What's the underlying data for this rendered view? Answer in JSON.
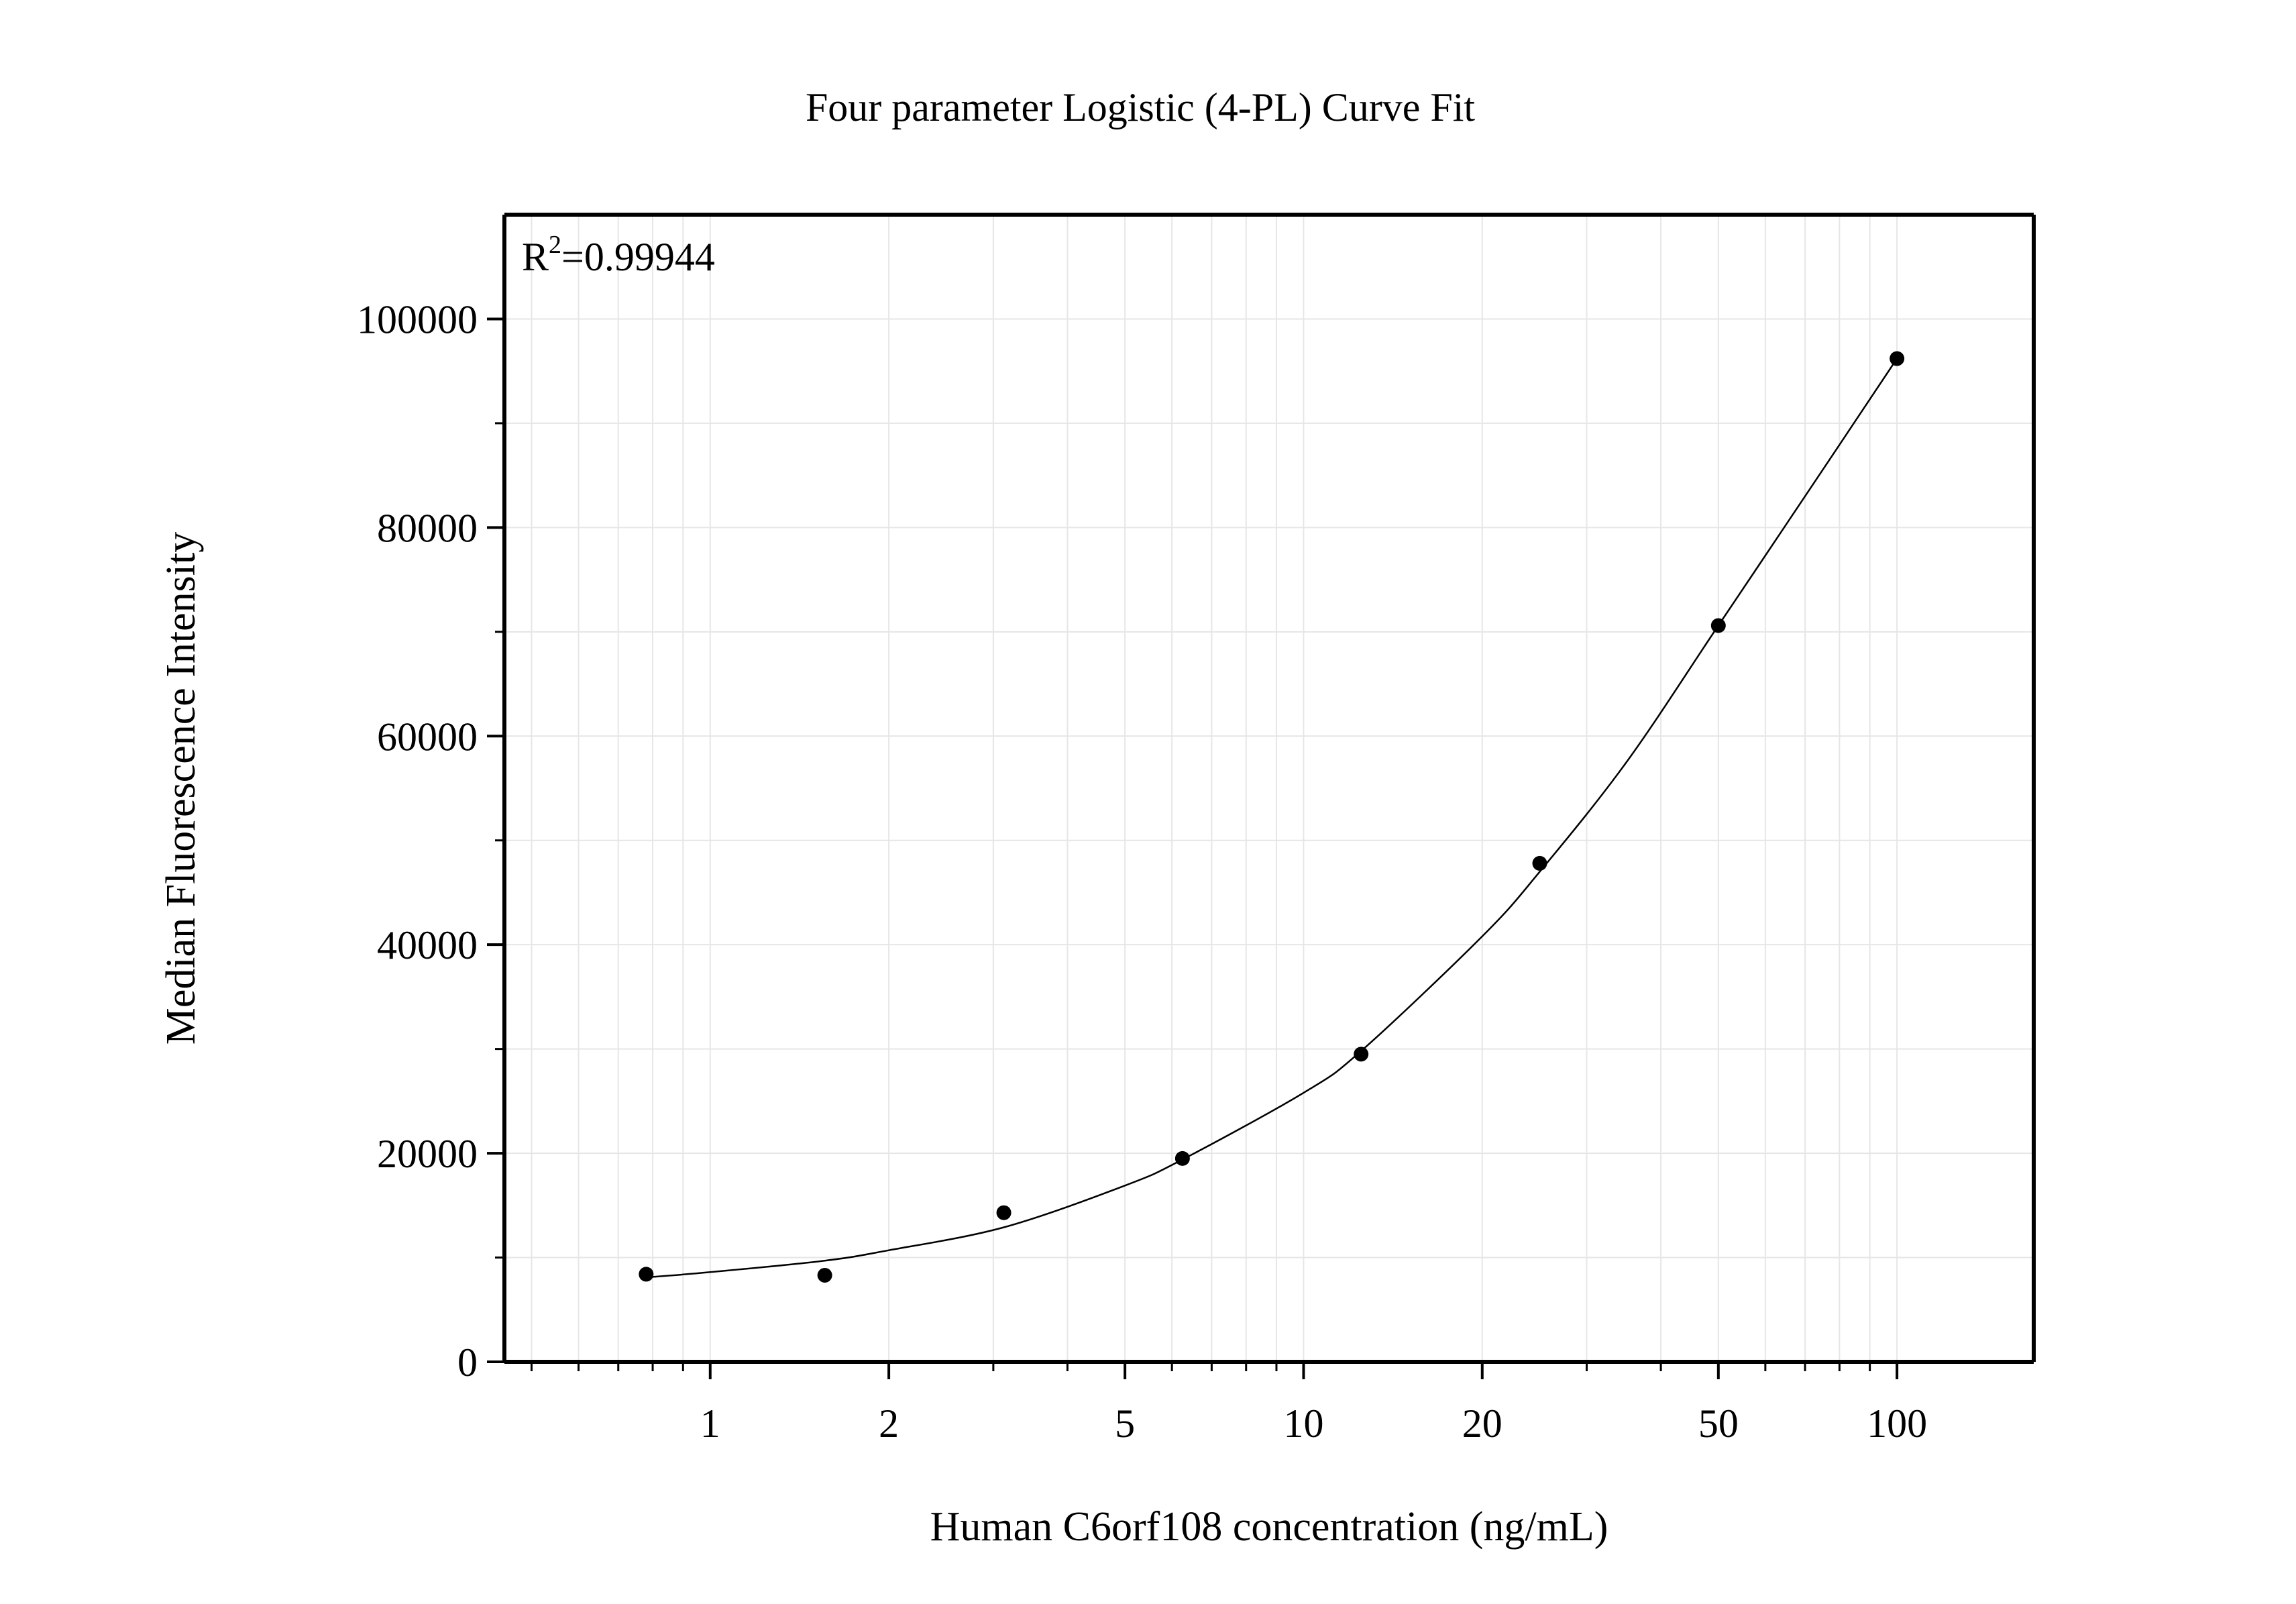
{
  "chart_data": {
    "type": "scatter",
    "title": "Four parameter Logistic (4-PL) Curve Fit",
    "xlabel": "Human C6orf108 concentration (ng/mL)",
    "ylabel": "Median Fluorescence Intensity",
    "xscale": "log",
    "xlim": [
      0.45,
      170
    ],
    "ylim": [
      0,
      110000
    ],
    "x_ticks": [
      1,
      2,
      5,
      10,
      20,
      50,
      100
    ],
    "x_tick_labels": [
      "1",
      "2",
      "5",
      "10",
      "20",
      "50",
      "100"
    ],
    "y_ticks": [
      0,
      20000,
      40000,
      60000,
      80000,
      100000
    ],
    "y_tick_labels": [
      "0",
      "20000",
      "40000",
      "60000",
      "80000",
      "100000"
    ],
    "grid": true,
    "annotation": {
      "r_label": "R",
      "r_exponent": "2",
      "r_value": "=0.99944"
    },
    "series": [
      {
        "type": "scatter",
        "color": "#000000",
        "x": [
          0.78,
          1.56,
          3.125,
          6.25,
          12.5,
          25,
          50,
          100
        ],
        "y": [
          8400,
          8300,
          14300,
          19500,
          29500,
          47800,
          70600,
          96200
        ]
      },
      {
        "type": "line",
        "color": "#000000",
        "x": [
          0.78,
          1,
          1.56,
          2,
          3.125,
          5,
          6.25,
          10,
          12.5,
          20,
          25,
          35,
          50,
          70,
          100
        ],
        "y": [
          8100,
          8600,
          9700,
          10700,
          12900,
          16900,
          19400,
          25800,
          29800,
          40800,
          47000,
          57500,
          70600,
          83000,
          96200
        ]
      }
    ]
  }
}
